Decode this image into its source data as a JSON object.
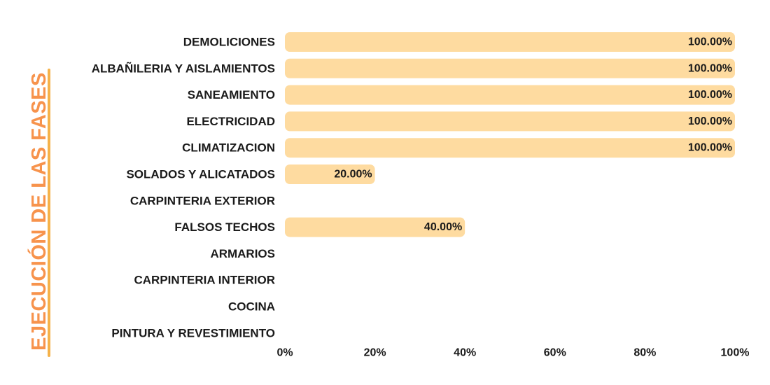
{
  "chart_data": {
    "type": "bar",
    "orientation": "horizontal",
    "side_title": "EJECUCIÓN DE LAS FASES",
    "categories": [
      "DEMOLICIONES",
      "ALBAÑILERIA Y AISLAMIENTOS",
      "SANEAMIENTO",
      "ELECTRICIDAD",
      "CLIMATIZACION",
      "SOLADOS Y ALICATADOS",
      "CARPINTERIA EXTERIOR",
      "FALSOS TECHOS",
      "ARMARIOS",
      "CARPINTERIA INTERIOR",
      "COCINA",
      "PINTURA Y REVESTIMIENTO"
    ],
    "values": [
      100,
      100,
      100,
      100,
      100,
      20,
      0,
      40,
      0,
      0,
      0,
      0
    ],
    "data_labels": [
      "100.00%",
      "100.00%",
      "100.00%",
      "100.00%",
      "100.00%",
      "20.00%",
      "",
      "40.00%",
      "",
      "",
      "",
      ""
    ],
    "x_ticks": [
      "0%",
      "20%",
      "40%",
      "60%",
      "80%",
      "100%"
    ],
    "xlim": [
      0,
      100
    ],
    "grid": false,
    "legend": "none",
    "colors": {
      "bar": "#fedba0",
      "title_orange": "#f7934c",
      "title_accent": "#f5b24a"
    }
  }
}
